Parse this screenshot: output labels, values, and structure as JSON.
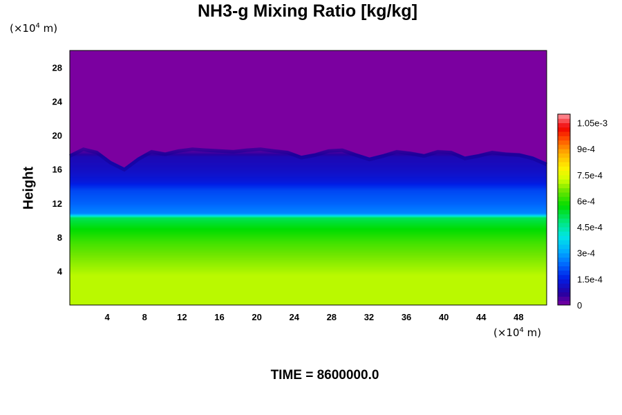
{
  "chart_data": {
    "type": "heatmap",
    "title": "NH3-g Mixing Ratio [kg/kg]",
    "ylabel": "Height",
    "x_unit": {
      "prefix": "(×10",
      "exp": "4",
      "suffix": " m)"
    },
    "y_unit": {
      "prefix": "(×10",
      "exp": "4",
      "suffix": " m)"
    },
    "footer": "TIME = 8600000.0",
    "xlim": [
      0,
      51
    ],
    "ylim": [
      0,
      30
    ],
    "x_ticks": [
      4,
      8,
      12,
      16,
      20,
      24,
      28,
      32,
      36,
      40,
      44,
      48
    ],
    "y_ticks": [
      4,
      8,
      12,
      16,
      20,
      24,
      28
    ],
    "colorbar": {
      "range": [
        0,
        0.0011
      ],
      "labels": [
        "0",
        "1.5e-4",
        "3e-4",
        "4.5e-4",
        "6e-4",
        "7.5e-4",
        "9e-4",
        "1.05e-3"
      ],
      "label_values": [
        0,
        0.00015,
        0.0003,
        0.00045,
        0.0006,
        0.00075,
        0.0009,
        0.00105
      ]
    },
    "vertical_profile": {
      "height": [
        0,
        3.5,
        4.5,
        6,
        7.5,
        9,
        10.3,
        10.8,
        12,
        13.5,
        14.5,
        16,
        17.5,
        18.5,
        30
      ],
      "value": [
        0.00071,
        0.00071,
        0.00069,
        0.00066,
        0.00062,
        0.00057,
        0.00051,
        0.00027,
        0.00023,
        0.0002,
        0.00014,
        0.00011,
        9e-05,
        0.0,
        0.0
      ]
    },
    "cloud_top_height": [
      17.8,
      18.6,
      18.2,
      17.0,
      16.2,
      17.4,
      18.3,
      18.0,
      18.4,
      18.6,
      18.5,
      18.4,
      18.3,
      18.5,
      18.6,
      18.4,
      18.2,
      17.6,
      17.9,
      18.4,
      18.5,
      17.9,
      17.4,
      17.8,
      18.3,
      18.1,
      17.8,
      18.3,
      18.2,
      17.5,
      17.8,
      18.2,
      18.0,
      17.9,
      17.5,
      16.8
    ],
    "colors": {
      "background": "#7b00a0"
    }
  }
}
